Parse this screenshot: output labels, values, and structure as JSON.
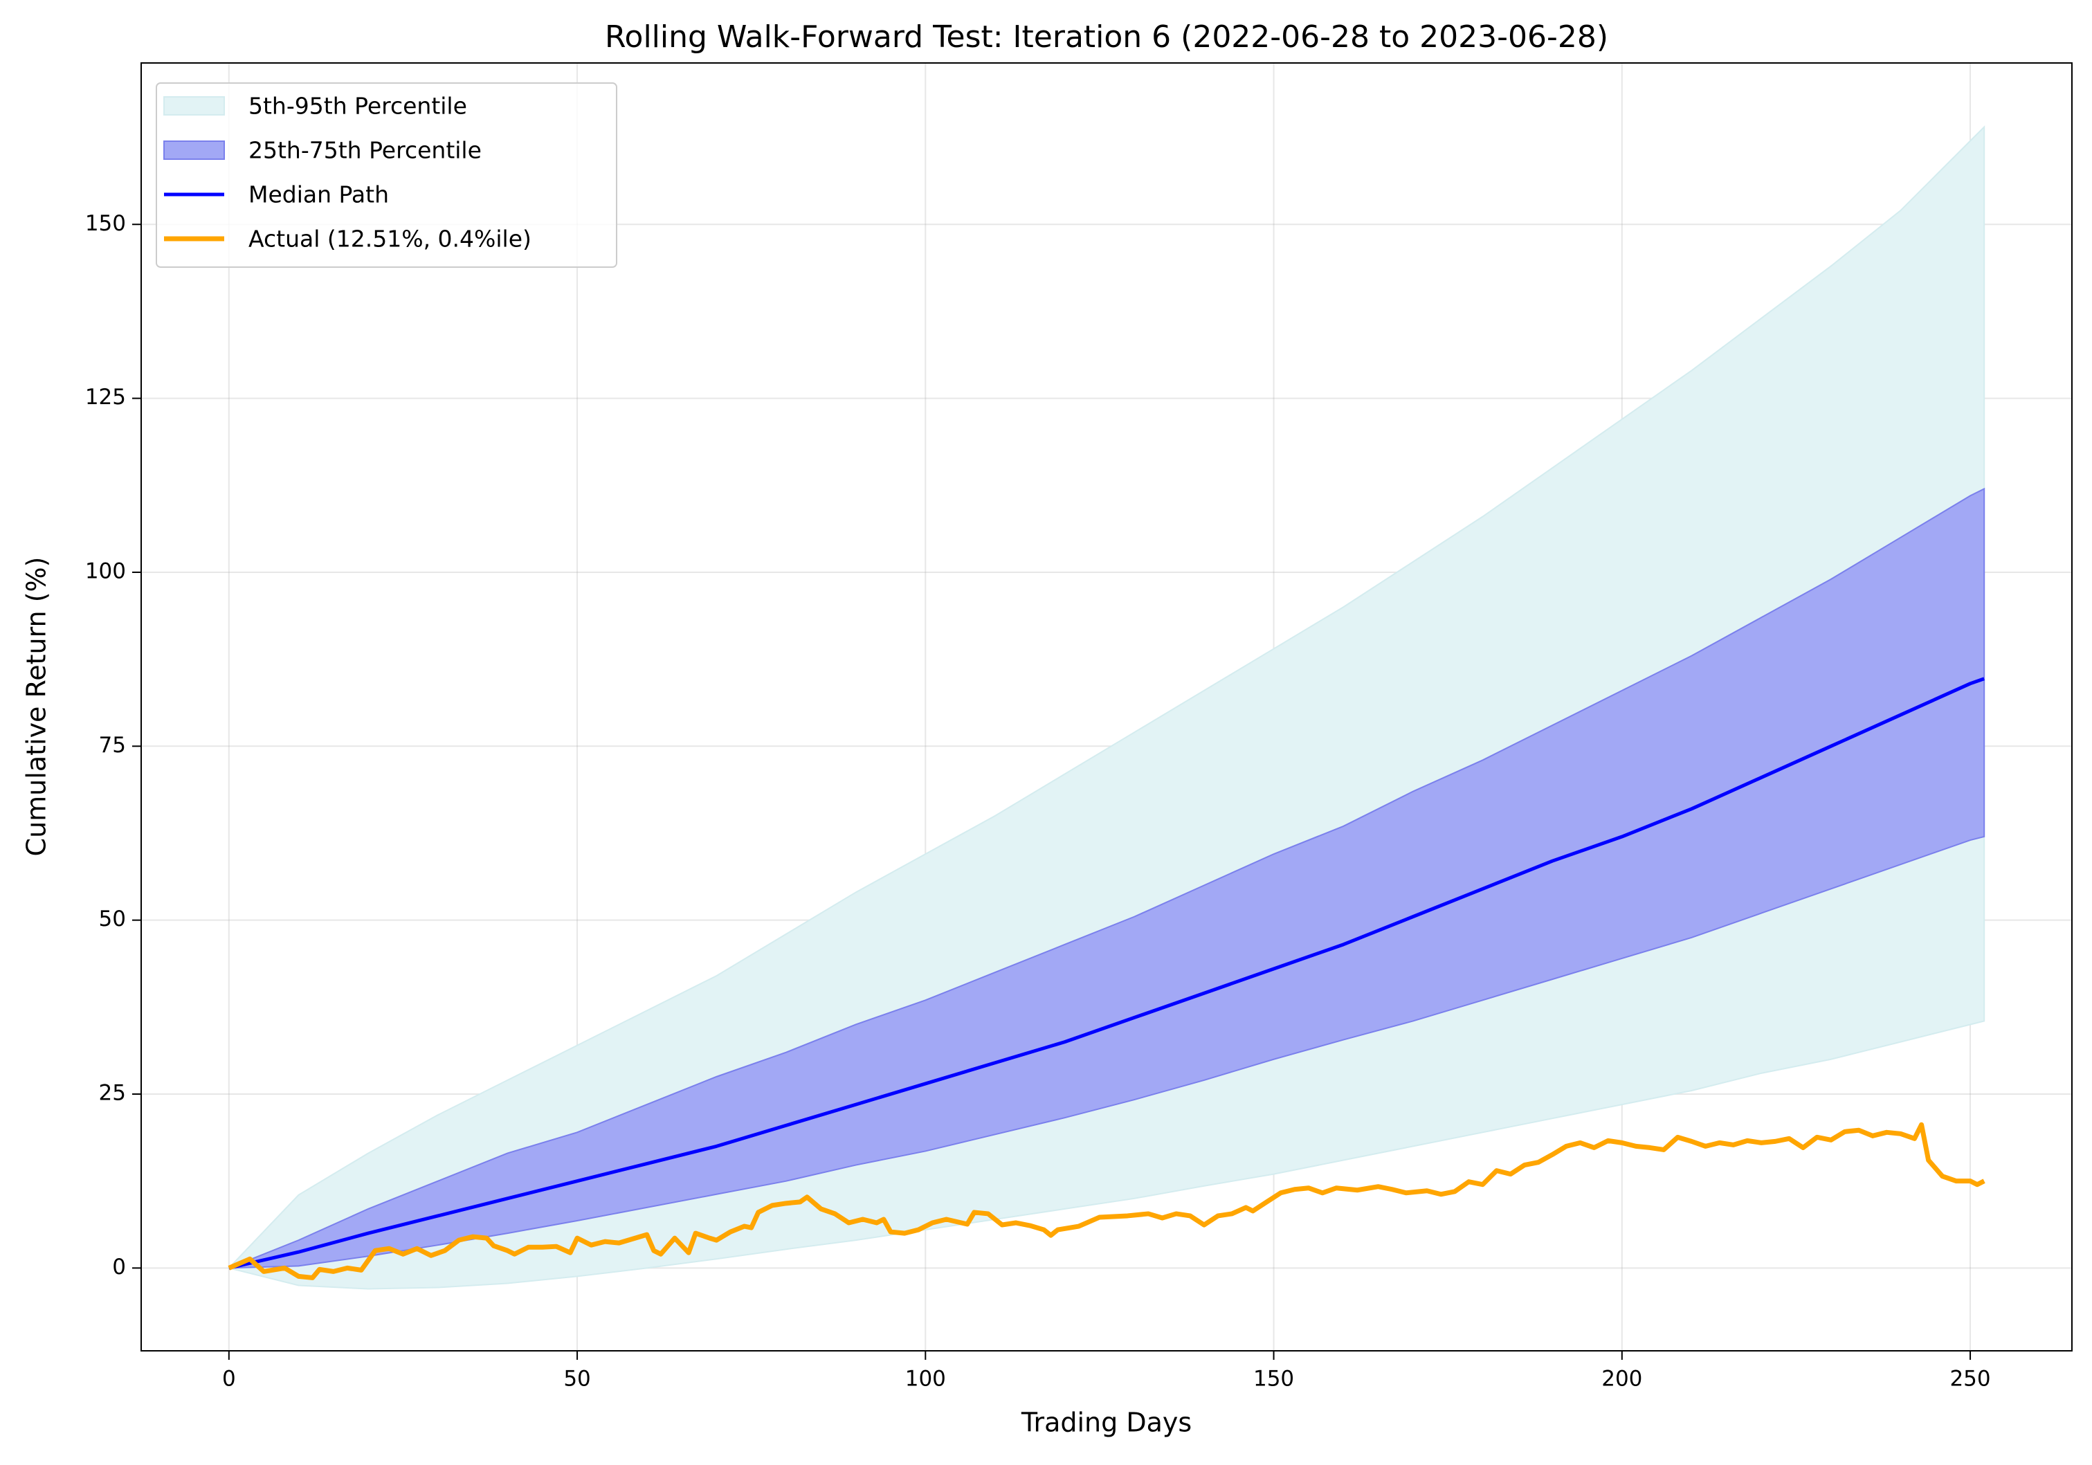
{
  "chart_data": {
    "type": "line",
    "title": "Rolling Walk-Forward Test: Iteration 6 (2022-06-28 to 2023-06-28)",
    "x_label": "Trading Days",
    "y_label": "Cumulative Return (%)",
    "xlim": [
      -12.6,
      264.6
    ],
    "ylim": [
      -11.9,
      173.2
    ],
    "xticks": [
      0,
      50,
      100,
      150,
      200,
      250
    ],
    "yticks": [
      0,
      25,
      50,
      75,
      100,
      125,
      150
    ],
    "grid": true,
    "legend": "upper left",
    "series": [
      {
        "name": "5th-95th Percentile",
        "color": "#e2f3f5",
        "edge_color": "#d4ecef",
        "x": [
          0,
          10,
          20,
          30,
          40,
          50,
          60,
          70,
          80,
          90,
          100,
          110,
          120,
          130,
          140,
          150,
          160,
          170,
          180,
          190,
          200,
          210,
          220,
          230,
          240,
          250,
          252
        ],
        "lower": [
          0,
          -2.5,
          -3,
          -2.8,
          -2.2,
          -1.2,
          0,
          1.3,
          2.7,
          4,
          5.5,
          7,
          8.5,
          10,
          11.8,
          13.5,
          15.5,
          17.5,
          19.5,
          21.5,
          23.5,
          25.5,
          28,
          30,
          32.5,
          35,
          35.5
        ],
        "upper": [
          0,
          10.5,
          16.5,
          22,
          27,
          32,
          37,
          42,
          48,
          54,
          59.5,
          65,
          71,
          77,
          83,
          89,
          95,
          101.5,
          108,
          115,
          122,
          129,
          136.5,
          144,
          152,
          162,
          164
        ]
      },
      {
        "name": "25th-75th Percentile",
        "color": "#a2a8f5",
        "edge_color": "#7a80ec",
        "x": [
          0,
          10,
          20,
          30,
          40,
          50,
          60,
          70,
          80,
          90,
          100,
          110,
          120,
          130,
          140,
          150,
          160,
          170,
          180,
          190,
          200,
          210,
          220,
          230,
          240,
          250,
          252
        ],
        "lower": [
          0,
          0.3,
          1.7,
          3.3,
          5,
          6.8,
          8.7,
          10.6,
          12.5,
          14.8,
          16.8,
          19.2,
          21.6,
          24.2,
          27,
          30,
          32.8,
          35.5,
          38.5,
          41.5,
          44.5,
          47.5,
          51,
          54.5,
          58,
          61.5,
          62
        ],
        "upper": [
          0,
          4,
          8.5,
          12.5,
          16.5,
          19.5,
          23.5,
          27.5,
          31,
          35,
          38.5,
          42.5,
          46.5,
          50.5,
          55,
          59.5,
          63.5,
          68.5,
          73,
          78,
          83,
          88,
          93.5,
          99,
          105,
          111,
          112
        ]
      },
      {
        "name": "Median Path",
        "color": "#0000ff",
        "width": 5,
        "x": [
          0,
          10,
          20,
          30,
          40,
          50,
          60,
          70,
          80,
          90,
          100,
          110,
          120,
          130,
          140,
          150,
          160,
          170,
          180,
          190,
          200,
          210,
          220,
          230,
          240,
          250,
          252
        ],
        "values": [
          0,
          2.3,
          5,
          7.5,
          10,
          12.5,
          15,
          17.5,
          20.5,
          23.5,
          26.5,
          29.5,
          32.5,
          36,
          39.5,
          43,
          46.5,
          50.5,
          54.5,
          58.5,
          62,
          66,
          70.5,
          75,
          79.5,
          84,
          84.7
        ]
      },
      {
        "name": "Actual (12.51%, 0.4%ile)",
        "color": "#ffa500",
        "width": 7,
        "x": [
          0,
          3,
          5,
          8,
          10,
          12,
          13,
          15,
          17,
          19,
          21,
          23,
          25,
          27,
          29,
          31,
          33,
          35,
          37,
          38,
          40,
          41,
          43,
          45,
          47,
          49,
          50,
          52,
          54,
          56,
          58,
          60,
          61,
          62,
          64,
          66,
          67,
          69,
          70,
          72,
          74,
          75,
          76,
          78,
          80,
          82,
          83,
          85,
          87,
          89,
          91,
          93,
          94,
          95,
          97,
          99,
          101,
          103,
          106,
          107,
          109,
          111,
          113,
          115,
          117,
          118,
          119,
          122,
          125,
          127,
          129,
          132,
          134,
          136,
          138,
          140,
          142,
          144,
          146,
          147,
          149,
          151,
          153,
          155,
          157,
          159,
          162,
          165,
          167,
          169,
          172,
          174,
          176,
          178,
          180,
          182,
          184,
          186,
          188,
          190,
          192,
          194,
          196,
          198,
          200,
          202,
          204,
          206,
          208,
          210,
          212,
          214,
          216,
          218,
          220,
          222,
          224,
          226,
          228,
          230,
          232,
          234,
          236,
          238,
          240,
          242,
          243,
          244,
          246,
          248,
          250,
          251,
          252
        ],
        "values": [
          0,
          1.3,
          -0.5,
          0,
          -1.2,
          -1.4,
          -0.2,
          -0.5,
          0,
          -0.3,
          2.5,
          2.8,
          2,
          2.8,
          1.8,
          2.5,
          4,
          4.5,
          4.3,
          3.2,
          2.5,
          2,
          3,
          3,
          3.1,
          2.2,
          4.3,
          3.3,
          3.8,
          3.6,
          4.2,
          4.8,
          2.5,
          2,
          4.3,
          2.2,
          5,
          4.3,
          4,
          5.2,
          6,
          5.8,
          8,
          9,
          9.3,
          9.5,
          10.2,
          8.5,
          7.8,
          6.5,
          7,
          6.5,
          7,
          5.2,
          5,
          5.5,
          6.5,
          7,
          6.3,
          8,
          7.8,
          6.2,
          6.5,
          6.1,
          5.5,
          4.7,
          5.5,
          6,
          7.3,
          7.4,
          7.5,
          7.8,
          7.2,
          7.8,
          7.5,
          6.2,
          7.5,
          7.8,
          8.7,
          8.2,
          9.5,
          10.8,
          11.3,
          11.5,
          10.8,
          11.5,
          11.2,
          11.7,
          11.3,
          10.8,
          11.1,
          10.6,
          11,
          12.4,
          12,
          14,
          13.5,
          14.8,
          15.2,
          16.3,
          17.5,
          18,
          17.3,
          18.3,
          18,
          17.5,
          17.3,
          17,
          18.8,
          18.2,
          17.5,
          18,
          17.7,
          18.3,
          18,
          18.2,
          18.6,
          17.3,
          18.8,
          18.4,
          19.6,
          19.8,
          19,
          19.5,
          19.3,
          18.6,
          20.6,
          15.5,
          13.2,
          12.5,
          12.5,
          12,
          12.5
        ]
      }
    ]
  }
}
